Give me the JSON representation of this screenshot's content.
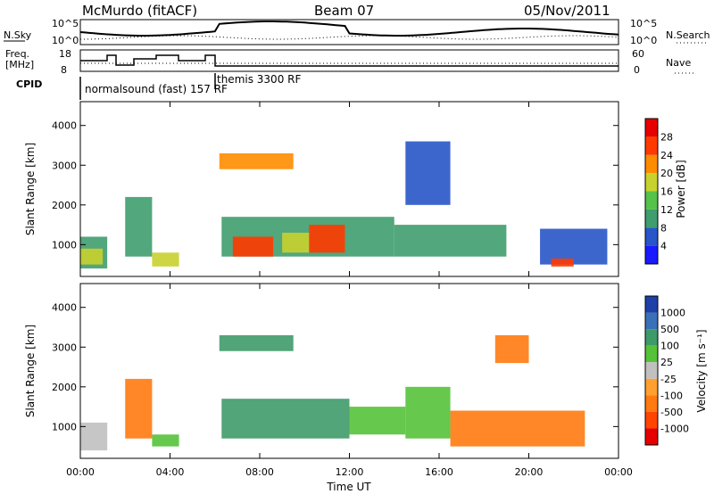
{
  "header": {
    "station": "McMurdo (fitACF)",
    "beam": "Beam 07",
    "date": "05/Nov/2011"
  },
  "noise_panel": {
    "left_label": "N.Sky",
    "right_label": "N.Search",
    "left_ticks": [
      "10^5",
      "10^0"
    ],
    "right_ticks": [
      "10^5",
      "10^0"
    ]
  },
  "freq_panel": {
    "left_label_1": "Freq.",
    "left_label_2": "[MHz]",
    "right_label": "Nave",
    "left_ticks": [
      "18",
      "8"
    ],
    "right_ticks": [
      "60",
      "0"
    ]
  },
  "cpid": {
    "label": "CPID",
    "programs": [
      {
        "name": "normalsound (fast) 157 RF",
        "start_hour": 0
      },
      {
        "name": "themis 3300 RF",
        "start_hour": 6
      }
    ]
  },
  "chart_data": [
    {
      "type": "heatmap",
      "title": "",
      "xlabel": "Time UT",
      "ylabel": "Slant Range [km]",
      "xlim_hours": [
        0,
        24
      ],
      "x_tick_labels": [
        "00:00",
        "04:00",
        "08:00",
        "12:00",
        "16:00",
        "20:00",
        "00:00"
      ],
      "y_ticks": [
        1000,
        2000,
        3000,
        4000
      ],
      "ylim": [
        200,
        4600
      ],
      "colorbar": {
        "label": "Power [dB]",
        "ticks": [
          4,
          8,
          12,
          16,
          20,
          24,
          28
        ],
        "colors": [
          "#1a1aff",
          "#2855c8",
          "#3f9d6e",
          "#55c24a",
          "#c8d22e",
          "#ff8c00",
          "#ff3a00",
          "#e60000"
        ]
      },
      "regions": [
        {
          "t0": 0.0,
          "t1": 1.2,
          "r0": 400,
          "r1": 1200,
          "v": 10
        },
        {
          "t0": 0.0,
          "t1": 1.0,
          "r0": 500,
          "r1": 900,
          "v": 18
        },
        {
          "t0": 2.0,
          "t1": 3.2,
          "r0": 700,
          "r1": 2200,
          "v": 9
        },
        {
          "t0": 3.2,
          "t1": 4.4,
          "r0": 450,
          "r1": 800,
          "v": 17
        },
        {
          "t0": 6.2,
          "t1": 9.5,
          "r0": 2900,
          "r1": 3300,
          "v": 22
        },
        {
          "t0": 6.3,
          "t1": 14.0,
          "r0": 700,
          "r1": 1700,
          "v": 10
        },
        {
          "t0": 6.8,
          "t1": 8.6,
          "r0": 700,
          "r1": 1200,
          "v": 26
        },
        {
          "t0": 10.2,
          "t1": 11.8,
          "r0": 800,
          "r1": 1500,
          "v": 24
        },
        {
          "t0": 9.0,
          "t1": 10.2,
          "r0": 800,
          "r1": 1300,
          "v": 19
        },
        {
          "t0": 14.0,
          "t1": 19.0,
          "r0": 700,
          "r1": 1500,
          "v": 8
        },
        {
          "t0": 14.5,
          "t1": 16.5,
          "r0": 2000,
          "r1": 3600,
          "v": 6
        },
        {
          "t0": 20.5,
          "t1": 23.5,
          "r0": 500,
          "r1": 1400,
          "v": 7
        },
        {
          "t0": 21.0,
          "t1": 22.0,
          "r0": 450,
          "r1": 650,
          "v": 25
        }
      ]
    },
    {
      "type": "heatmap",
      "title": "",
      "xlabel": "Time UT",
      "ylabel": "Slant Range [km]",
      "xlim_hours": [
        0,
        24
      ],
      "x_tick_labels": [
        "00:00",
        "04:00",
        "08:00",
        "12:00",
        "16:00",
        "20:00",
        "00:00"
      ],
      "y_ticks": [
        1000,
        2000,
        3000,
        4000
      ],
      "ylim": [
        200,
        4600
      ],
      "colorbar": {
        "label": "Velocity [m s⁻¹]",
        "ticks": [
          1000,
          500,
          100,
          25,
          -25,
          -100,
          -500,
          -1000
        ],
        "colors": [
          "#1f3fa8",
          "#3a70b8",
          "#3f9a6a",
          "#55c23a",
          "#c0c0c0",
          "#ffa030",
          "#ff7a10",
          "#ff4500",
          "#e60000"
        ]
      },
      "regions": [
        {
          "t0": 0.0,
          "t1": 1.2,
          "r0": 400,
          "r1": 1100,
          "v": 0
        },
        {
          "t0": 2.0,
          "t1": 3.2,
          "r0": 700,
          "r1": 2200,
          "v": -150
        },
        {
          "t0": 3.2,
          "t1": 4.4,
          "r0": 500,
          "r1": 800,
          "v": 50
        },
        {
          "t0": 6.2,
          "t1": 9.5,
          "r0": 2900,
          "r1": 3300,
          "v": 200
        },
        {
          "t0": 6.3,
          "t1": 12.0,
          "r0": 700,
          "r1": 1700,
          "v": 200
        },
        {
          "t0": 12.0,
          "t1": 14.5,
          "r0": 800,
          "r1": 1500,
          "v": 60
        },
        {
          "t0": 14.5,
          "t1": 16.5,
          "r0": 700,
          "r1": 2000,
          "v": 80
        },
        {
          "t0": 16.5,
          "t1": 22.5,
          "r0": 500,
          "r1": 1400,
          "v": -300
        },
        {
          "t0": 18.5,
          "t1": 20.0,
          "r0": 2600,
          "r1": 3300,
          "v": -200
        }
      ]
    }
  ]
}
